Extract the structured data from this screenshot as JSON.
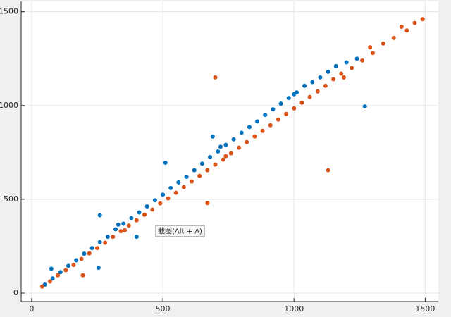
{
  "chart_data": {
    "type": "scatter",
    "xlim": [
      -40,
      1550
    ],
    "ylim": [
      -45,
      1555
    ],
    "xticks": [
      0,
      500,
      1000,
      1500
    ],
    "yticks": [
      0,
      500,
      1000,
      1500
    ],
    "grid": true,
    "annotation": "截图(Alt + A)",
    "series": [
      {
        "color": "#0072bd",
        "x": [
          50,
          80,
          110,
          140,
          170,
          200,
          230,
          260,
          290,
          320,
          350,
          380,
          410,
          440,
          470,
          500,
          530,
          560,
          590,
          620,
          650,
          680,
          710,
          740,
          770,
          800,
          830,
          860,
          890,
          920,
          950,
          980,
          1010,
          1040,
          1070,
          1100,
          1130,
          1160,
          1200,
          1240,
          260,
          510,
          690,
          1270,
          400,
          255,
          75,
          330,
          720,
          1000
        ],
        "values": [
          45,
          78,
          112,
          145,
          175,
          210,
          240,
          272,
          300,
          340,
          370,
          400,
          430,
          462,
          495,
          525,
          560,
          590,
          620,
          655,
          690,
          725,
          755,
          790,
          820,
          855,
          885,
          915,
          950,
          980,
          1010,
          1040,
          1070,
          1105,
          1125,
          1150,
          1180,
          1210,
          1230,
          1250,
          415,
          695,
          835,
          995,
          300,
          135,
          130,
          365,
          780,
          1060
        ]
      },
      {
        "color": "#d95319",
        "x": [
          40,
          70,
          100,
          130,
          160,
          190,
          220,
          250,
          280,
          310,
          340,
          370,
          400,
          430,
          460,
          490,
          520,
          550,
          580,
          610,
          640,
          670,
          700,
          730,
          760,
          790,
          820,
          850,
          880,
          910,
          940,
          970,
          1000,
          1030,
          1060,
          1090,
          1120,
          1150,
          1180,
          1220,
          1260,
          1300,
          1340,
          1380,
          1410,
          1430,
          1460,
          1490,
          700,
          1130,
          670,
          195,
          1290,
          1190,
          740,
          355
        ],
        "values": [
          35,
          62,
          95,
          122,
          150,
          182,
          212,
          240,
          268,
          300,
          330,
          360,
          388,
          418,
          445,
          478,
          505,
          535,
          565,
          595,
          625,
          655,
          685,
          712,
          745,
          775,
          805,
          835,
          865,
          895,
          925,
          955,
          985,
          1015,
          1045,
          1075,
          1105,
          1140,
          1170,
          1200,
          1240,
          1280,
          1330,
          1360,
          1420,
          1400,
          1440,
          1460,
          1150,
          655,
          480,
          95,
          1310,
          1150,
          730,
          335
        ]
      }
    ]
  }
}
